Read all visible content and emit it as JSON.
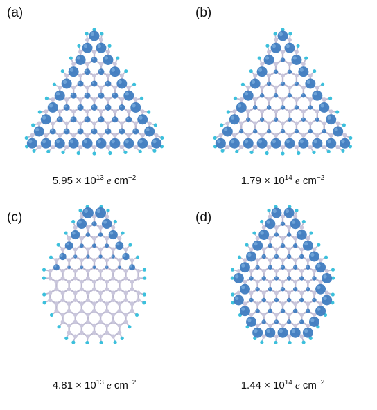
{
  "panels": [
    {
      "id": "a",
      "label": "(a)",
      "mantissa": "5.95",
      "times": "×",
      "base": "10",
      "exponent": "13",
      "unit_e": "e",
      "unit_cm": "cm",
      "unit_exp": "−2",
      "shape": "triangle",
      "blob_mode": "uniform"
    },
    {
      "id": "b",
      "label": "(b)",
      "mantissa": "1.79",
      "times": "×",
      "base": "10",
      "exponent": "14",
      "unit_e": "e",
      "unit_cm": "cm",
      "unit_exp": "−2",
      "shape": "triangle",
      "blob_mode": "edges"
    },
    {
      "id": "c",
      "label": "(c)",
      "mantissa": "4.81",
      "times": "×",
      "base": "10",
      "exponent": "13",
      "unit_e": "e",
      "unit_cm": "cm",
      "unit_exp": "−2",
      "shape": "hexagon",
      "blob_mode": "top"
    },
    {
      "id": "d",
      "label": "(d)",
      "mantissa": "1.44",
      "times": "×",
      "base": "10",
      "exponent": "14",
      "unit_e": "e",
      "unit_cm": "cm",
      "unit_exp": "−2",
      "shape": "hexagon",
      "blob_mode": "edges"
    }
  ],
  "colors": {
    "carbon": "#c9c6dc",
    "bond": "#bdbad1",
    "hydrogen": "#3cc0dc",
    "density": "#3f7cc0",
    "density_light": "#7fb0e0"
  }
}
